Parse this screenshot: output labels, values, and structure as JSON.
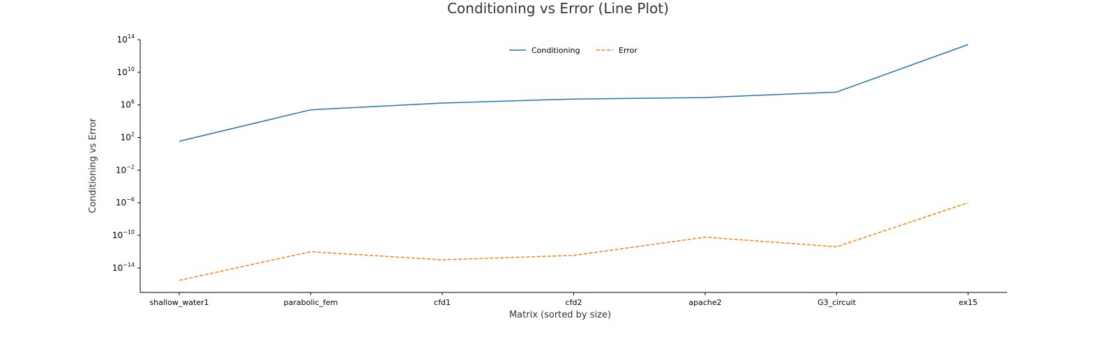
{
  "chart_data": {
    "type": "line",
    "title": "Conditioning vs Error (Line Plot)",
    "xlabel": "Matrix (sorted by size)",
    "ylabel": "Conditioning vs Error",
    "y_scale": "log",
    "y_tick_exponents": [
      -14,
      -10,
      -6,
      -2,
      2,
      6,
      10,
      14
    ],
    "ylim": [
      1e-17,
      100000000000000.0
    ],
    "categories": [
      "shallow_water1",
      "parabolic_fem",
      "cfd1",
      "cfd2",
      "apache2",
      "G3_circuit",
      "ex15"
    ],
    "series": [
      {
        "name": "Conditioning",
        "color": "#1f77b4",
        "line_style": "solid",
        "values": [
          35,
          250000.0,
          1700000.0,
          5300000.0,
          8000000.0,
          38000000.0,
          25000000000000.0
        ]
      },
      {
        "name": "Error",
        "color": "#ff7f0e",
        "line_style": "dashed",
        "values": [
          3e-16,
          1e-12,
          1e-13,
          3.5e-13,
          6e-11,
          4e-12,
          1e-06
        ]
      }
    ],
    "legend_position": "top-center",
    "grid": false,
    "spines": "left-bottom"
  }
}
